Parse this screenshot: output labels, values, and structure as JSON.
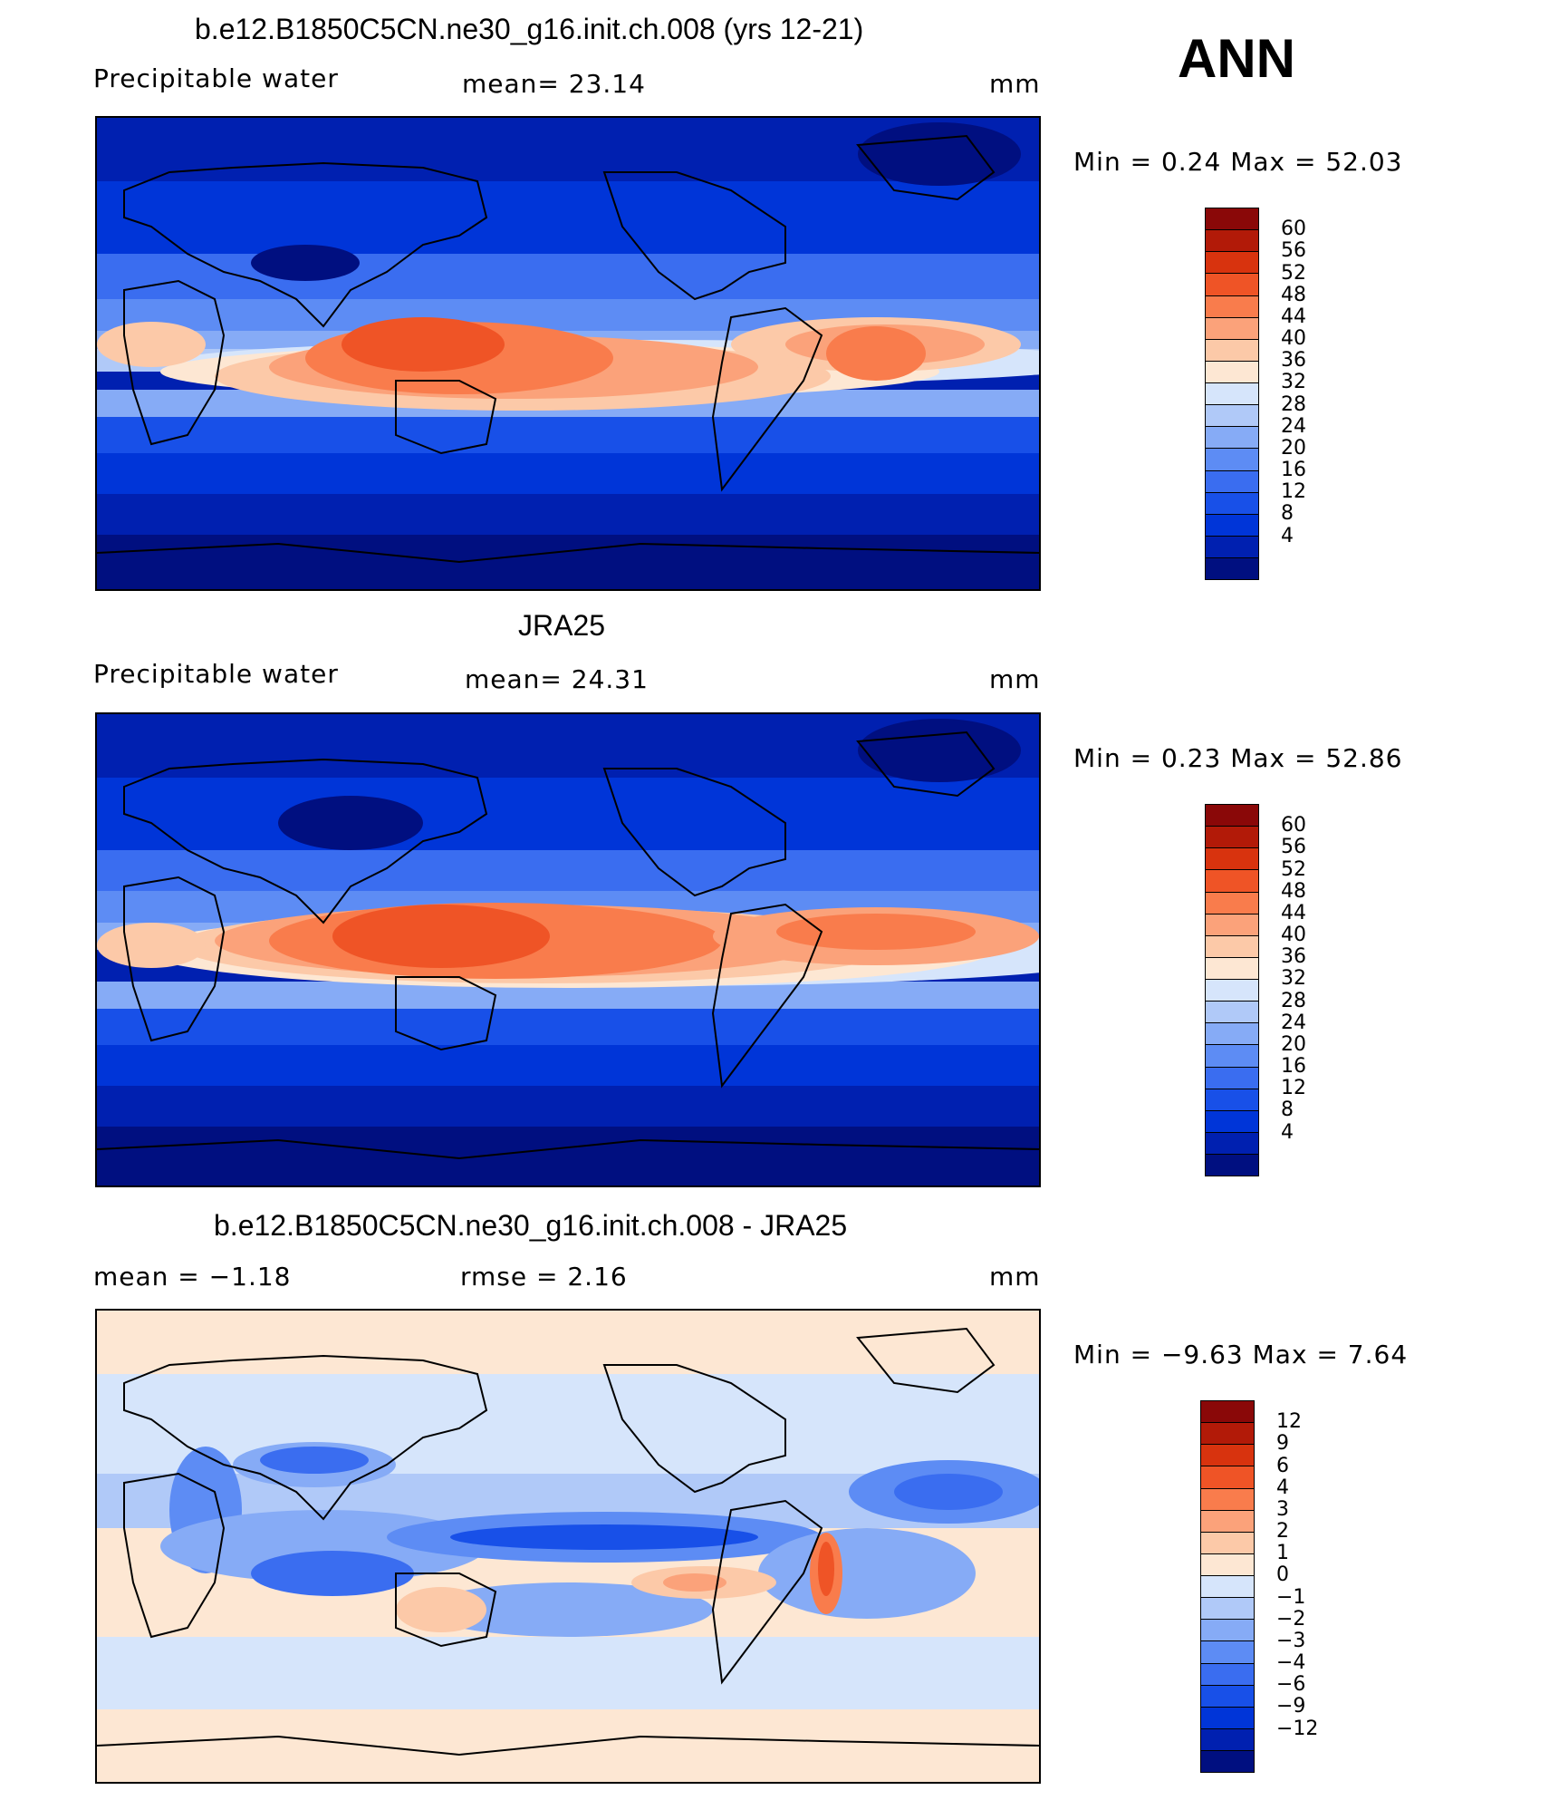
{
  "season": "ANN",
  "palette_pw": [
    "#000f80",
    "#0020b0",
    "#0035d8",
    "#1850e8",
    "#3a6df0",
    "#5d8cf4",
    "#86abf6",
    "#b0c9f8",
    "#d6e5fb",
    "#fde7d3",
    "#fcc9a8",
    "#fba27a",
    "#f97c4c",
    "#ef5426",
    "#d8330e",
    "#b21a08",
    "#8a0808"
  ],
  "palette_diff": [
    "#000f80",
    "#0020b0",
    "#0035d8",
    "#1850e8",
    "#3a6df0",
    "#5d8cf4",
    "#86abf6",
    "#b0c9f8",
    "#d6e5fb",
    "#fde7d3",
    "#fcc9a8",
    "#fba27a",
    "#f97c4c",
    "#ef5426",
    "#d8330e",
    "#b21a08",
    "#8a0808"
  ],
  "chart_data": [
    {
      "type": "heatmap",
      "title": "b.e12.B1850C5CN.ne30_g16.init.ch.008 (yrs 12-21)",
      "left_label": "Precipitable  water",
      "center_label": "mean=   23.14",
      "units": "mm",
      "minmax": "Min  =     0.24  Max  =    52.03",
      "mean": 23.14,
      "min": 0.24,
      "max": 52.03,
      "colorbar_levels": [
        "60",
        "56",
        "52",
        "48",
        "44",
        "40",
        "36",
        "32",
        "28",
        "24",
        "20",
        "16",
        "12",
        "8",
        "4"
      ]
    },
    {
      "type": "heatmap",
      "title": "JRA25",
      "left_label": "Precipitable  water",
      "center_label": "mean=   24.31",
      "units": "mm",
      "minmax": "Min  =     0.23  Max  =    52.86",
      "mean": 24.31,
      "min": 0.23,
      "max": 52.86,
      "colorbar_levels": [
        "60",
        "56",
        "52",
        "48",
        "44",
        "40",
        "36",
        "32",
        "28",
        "24",
        "20",
        "16",
        "12",
        "8",
        "4"
      ]
    },
    {
      "type": "heatmap",
      "title": "b.e12.B1850C5CN.ne30_g16.init.ch.008 - JRA25",
      "left_label": "mean  =    −1.18",
      "center_label": "rmse  =     2.16",
      "units": "mm",
      "minmax": "Min  =    −9.63  Max  =     7.64",
      "mean": -1.18,
      "rmse": 2.16,
      "min": -9.63,
      "max": 7.64,
      "colorbar_levels": [
        "12",
        "9",
        "6",
        "4",
        "3",
        "2",
        "1",
        "0",
        "−1",
        "−2",
        "−3",
        "−4",
        "−6",
        "−9",
        "−12"
      ]
    }
  ]
}
